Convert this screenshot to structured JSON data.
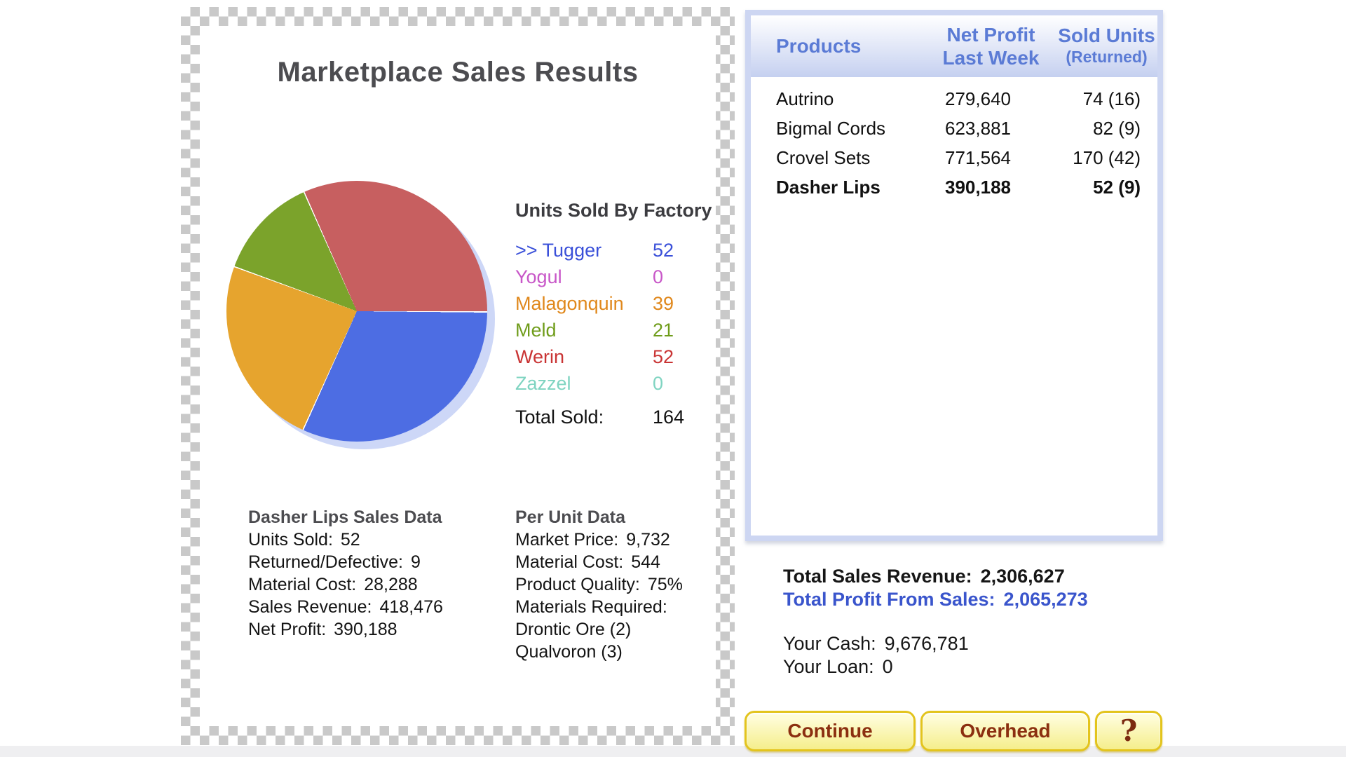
{
  "report": {
    "title": "Marketplace Sales Results",
    "legend": {
      "title": "Units Sold By Factory",
      "items": [
        {
          "label": ">> Tugger",
          "value": "52",
          "color": "#3a50d9"
        },
        {
          "label": "Yogul",
          "value": "0",
          "color": "#c857c8"
        },
        {
          "label": "Malagonquin",
          "value": "39",
          "color": "#e0881c"
        },
        {
          "label": "Meld",
          "value": "21",
          "color": "#6f9c1a"
        },
        {
          "label": "Werin",
          "value": "52",
          "color": "#c93434"
        },
        {
          "label": "Zazzel",
          "value": "0",
          "color": "#7fd4c1"
        }
      ],
      "total_label": "Total Sold:",
      "total_value": "164"
    },
    "sales_data": {
      "title": "Dasher Lips Sales Data",
      "rows": [
        {
          "label": "Units Sold:",
          "value": "52"
        },
        {
          "label": "Returned/Defective:",
          "value": "9"
        },
        {
          "label": "Material Cost:",
          "value": "28,288"
        },
        {
          "label": "Sales Revenue:",
          "value": "418,476"
        },
        {
          "label": "Net Profit:",
          "value": "390,188"
        }
      ]
    },
    "per_unit": {
      "title": "Per Unit Data",
      "rows": [
        {
          "label": "Market Price:",
          "value": "9,732"
        },
        {
          "label": "Material Cost:",
          "value": "544"
        },
        {
          "label": "Product Quality:",
          "value": "75%"
        },
        {
          "label": "Materials Required:",
          "value": ""
        },
        {
          "label": "Drontic Ore (2)",
          "value": ""
        },
        {
          "label": "Qualvoron (3)",
          "value": ""
        }
      ]
    }
  },
  "chart_data": {
    "type": "pie",
    "title": "Units Sold By Factory",
    "categories": [
      "Tugger",
      "Yogul",
      "Malagonquin",
      "Meld",
      "Werin",
      "Zazzel"
    ],
    "values": [
      52,
      0,
      39,
      21,
      52,
      0
    ],
    "total": 164,
    "slice_colors": [
      "#4d6de3",
      "#c857c8",
      "#e6a42e",
      "#7ba32b",
      "#c75f60",
      "#7fd4c1"
    ],
    "layout": {
      "start": "east",
      "direction": "clockwise",
      "separator": "#ffffff",
      "shadow_color": "#cdd7f7",
      "legend_position": "right"
    }
  },
  "products_table": {
    "headers": {
      "products": "Products",
      "net_profit_line1": "Net Profit",
      "net_profit_line2": "Last Week",
      "sold_units_line1": "Sold Units",
      "sold_units_line2": "(Returned)"
    },
    "rows": [
      {
        "name": "Autrino",
        "profit": "279,640",
        "units": "74 (16)",
        "selected": false
      },
      {
        "name": "Bigmal Cords",
        "profit": "623,881",
        "units": "82 (9)",
        "selected": false
      },
      {
        "name": "Crovel Sets",
        "profit": "771,564",
        "units": "170 (42)",
        "selected": false
      },
      {
        "name": "Dasher Lips",
        "profit": "390,188",
        "units": "52 (9)",
        "selected": true
      }
    ]
  },
  "summary": {
    "revenue_label": "Total Sales Revenue:",
    "revenue_value": "2,306,627",
    "profit_label": "Total Profit From Sales:",
    "profit_value": "2,065,273",
    "cash_label": "Your Cash:",
    "cash_value": "9,676,781",
    "loan_label": "Your Loan:",
    "loan_value": "0"
  },
  "buttons": {
    "continue_label": "Continue",
    "overhead_label": "Overhead",
    "help_label": "?"
  },
  "colors": {
    "header_blue": "#5b7bd5",
    "profit_blue": "#3a55cc",
    "button_border_gold": "#e3c41d",
    "button_text_brown": "#8b2f10",
    "checker_gray": "#c9c9c9",
    "panel_border_blue": "#cdd6f2"
  }
}
